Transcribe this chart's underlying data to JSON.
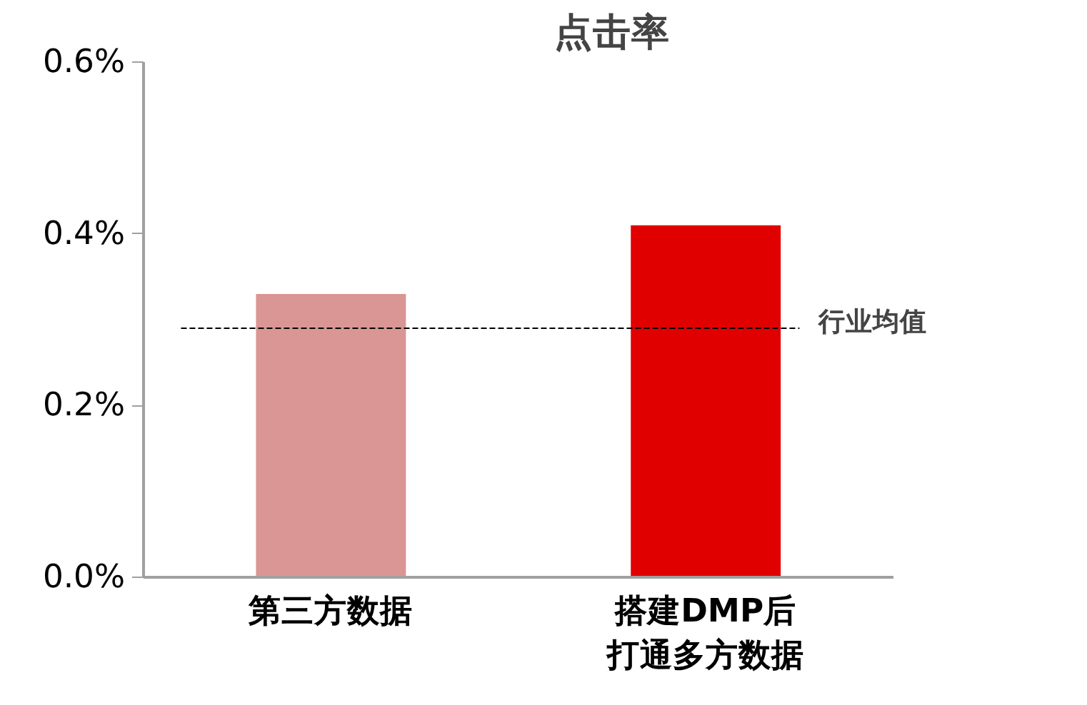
{
  "chart_data": {
    "type": "bar",
    "title": "点击率",
    "categories": [
      "第三方数据",
      "搭建DMP后打通多方数据"
    ],
    "values": [
      0.33,
      0.41
    ],
    "colors": [
      "#d99694",
      "#e00000"
    ],
    "ylim": [
      0,
      0.6
    ],
    "yticks": [
      {
        "value": 0,
        "label": "0.0%"
      },
      {
        "value": 0.2,
        "label": "0.2%"
      },
      {
        "value": 0.4,
        "label": "0.4%"
      },
      {
        "value": 0.6,
        "label": "0.6%"
      }
    ],
    "grid": false,
    "legend": false,
    "ref_lines": [
      {
        "axis": "y",
        "value": 0.29,
        "label": "行业均值",
        "line_style": "dashed",
        "color": "#000000"
      }
    ]
  }
}
